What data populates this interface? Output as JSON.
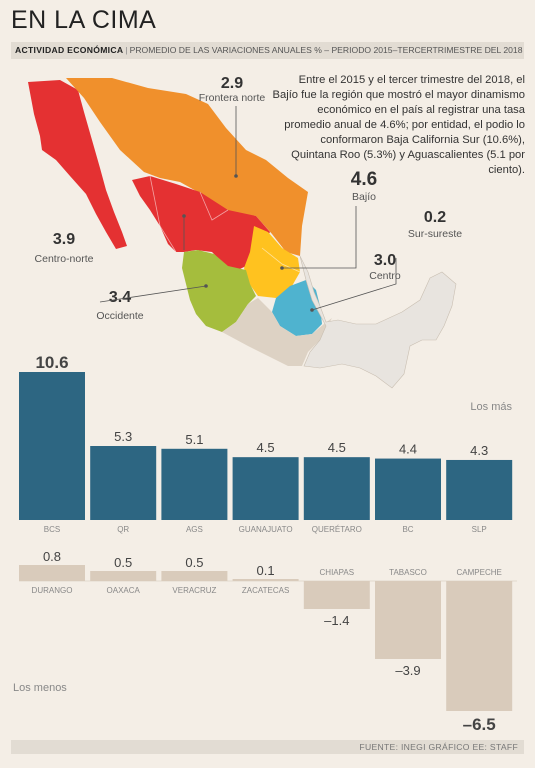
{
  "header": {
    "title": "EN LA CIMA",
    "lead": "ACTIVIDAD ECONÓMICA",
    "subtitle": "PROMEDIO DE LAS VARIACIONES ANUALES % – PERIODO 2015–TERCERTRIMESTRE DEL 2018"
  },
  "intro": "Entre el 2015 y el tercer trimestre del 2018, el Bajío fue la región que mostró el mayor dinamismo económico en el país al registrar una tasa promedio anual de 4.6%; por entidad, el podio lo conformaron Baja California Sur (10.6%), Quintana Roo (5.3%) y Aguascalientes (5.1 por ciento).",
  "map": {
    "regions": [
      {
        "name": "Frontera norte",
        "value": "2.9",
        "color": "#f0902c"
      },
      {
        "name": "Centro-norte",
        "value": "3.9",
        "color": "#e43132"
      },
      {
        "name": "Bajío",
        "value": "4.6",
        "color": "#ffc21f"
      },
      {
        "name": "Occidente",
        "value": "3.4",
        "color": "#a5bd3d"
      },
      {
        "name": "Centro",
        "value": "3.0",
        "color": "#4fb3cf"
      },
      {
        "name": "Sur-sureste",
        "value": "0.2",
        "color": "#e8e4df"
      }
    ],
    "land_color": "#ddd2c4"
  },
  "labels": {
    "top_group": "Los más",
    "bottom_group": "Los menos",
    "source": "FUENTE: INEGI GRÁFICO EE: STAFF"
  },
  "chart_data": [
    {
      "type": "bar",
      "title": "Los más",
      "categories": [
        "BCS",
        "QR",
        "AGS",
        "GUANAJUATO",
        "QUERÉTARO",
        "BC",
        "SLP"
      ],
      "values": [
        10.6,
        5.3,
        5.1,
        4.5,
        4.5,
        4.4,
        4.3
      ],
      "value_labels": [
        "10.6",
        "5.3",
        "5.1",
        "4.5",
        "4.5",
        "4.4",
        "4.3"
      ],
      "color": "#2d6682",
      "ylim": [
        0,
        10.6
      ]
    },
    {
      "type": "bar",
      "title": "Los menos",
      "categories": [
        "DURANGO",
        "OAXACA",
        "VERACRUZ",
        "ZACATECAS",
        "CHIAPAS",
        "TABASCO",
        "CAMPECHE"
      ],
      "values": [
        0.8,
        0.5,
        0.5,
        0.1,
        -1.4,
        -3.9,
        -6.5
      ],
      "value_labels": [
        "0.8",
        "0.5",
        "0.5",
        "0.1",
        "–1.4",
        "–3.9",
        "–6.5"
      ],
      "color": "#d9cbbb",
      "ylim": [
        -6.5,
        0.8
      ]
    }
  ]
}
